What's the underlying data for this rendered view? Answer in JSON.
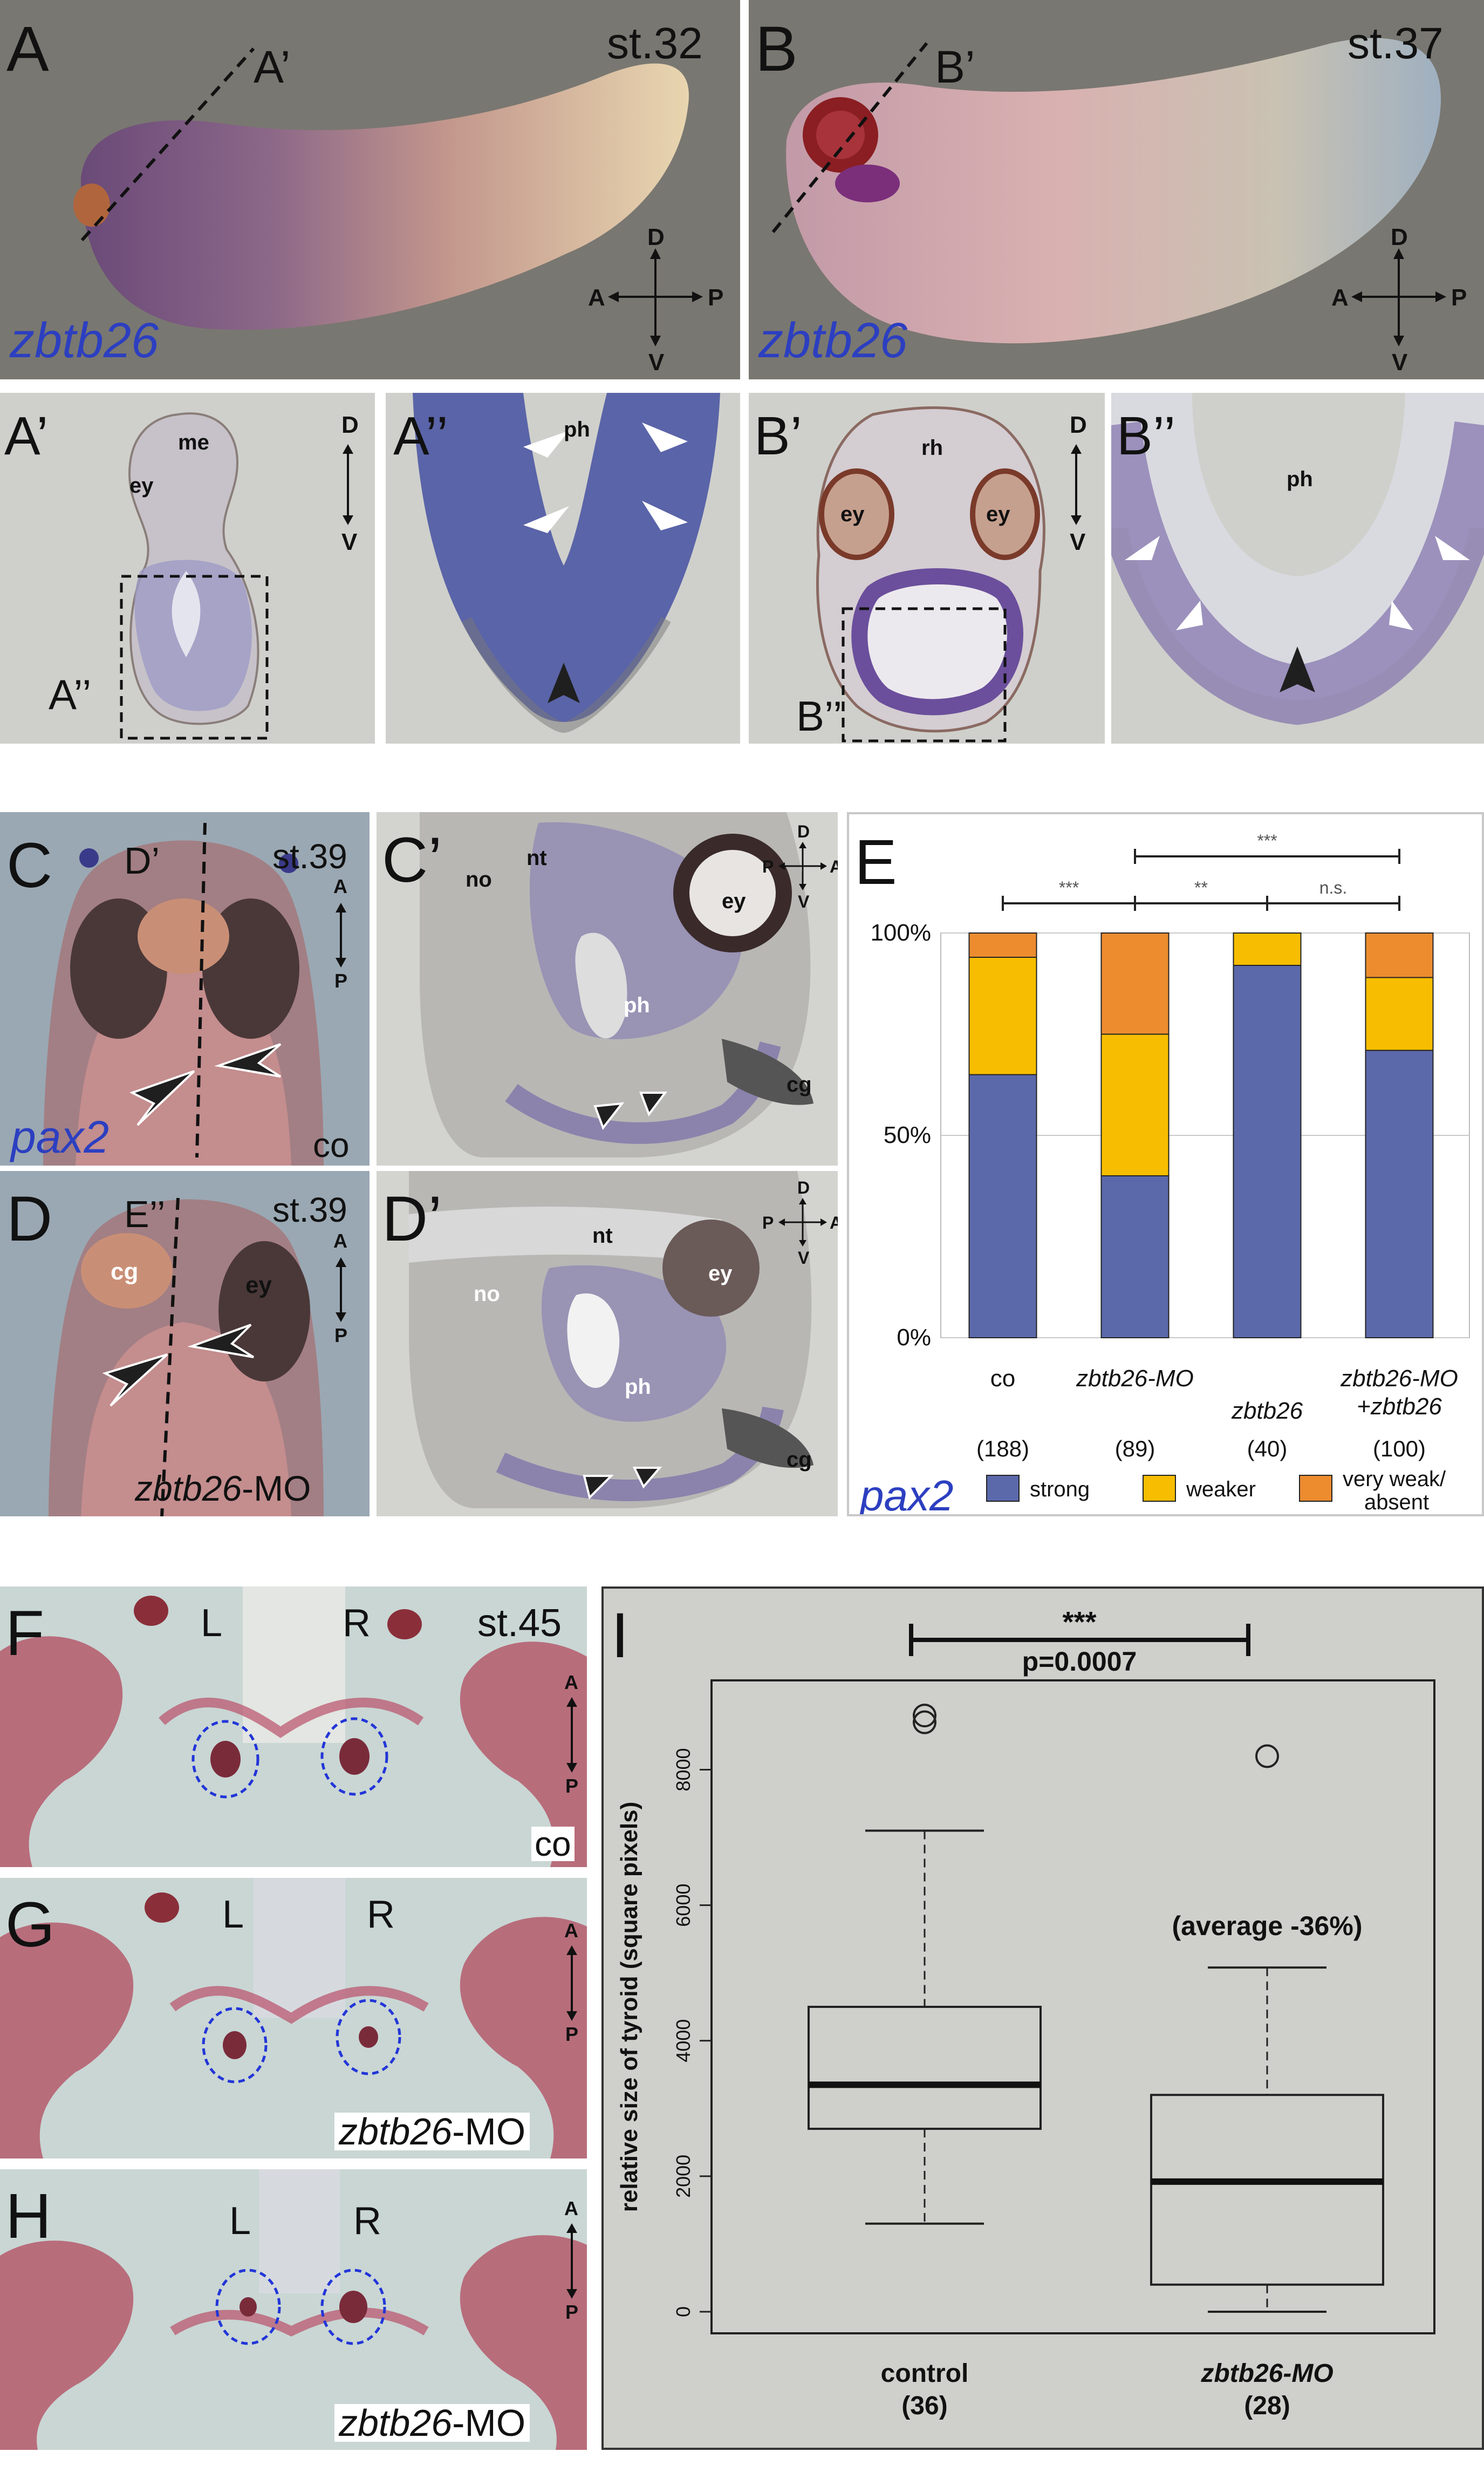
{
  "panel_A": {
    "letter": "A",
    "sub": "A’",
    "stage": "st.32",
    "gene": "zbtb26",
    "axis": {
      "d": "D",
      "v": "V",
      "a": "A",
      "p": "P"
    }
  },
  "panel_B": {
    "letter": "B",
    "sub": "B’",
    "stage": "st.37",
    "gene": "zbtb26",
    "axis": {
      "d": "D",
      "v": "V",
      "a": "A",
      "p": "P"
    }
  },
  "panel_A1": {
    "letter": "A’",
    "me": "me",
    "ey": "ey",
    "box": "A’’",
    "d": "D",
    "v": "V"
  },
  "panel_A2": {
    "letter": "A’’",
    "ph": "ph"
  },
  "panel_B1": {
    "letter": "B’",
    "rh": "rh",
    "ey1": "ey",
    "ey2": "ey",
    "box": "B’’",
    "d": "D",
    "v": "V"
  },
  "panel_B2": {
    "letter": "B’’",
    "ph": "ph"
  },
  "panel_C": {
    "letter": "C",
    "sub": "D’",
    "stage": "st.39",
    "gene": "pax2",
    "cond": "co",
    "a": "A",
    "p": "P"
  },
  "panel_C1": {
    "letter": "C’",
    "no": "no",
    "nt": "nt",
    "ey": "ey",
    "ph": "ph",
    "cg": "cg",
    "d": "D",
    "v": "V",
    "p": "P",
    "a": "A"
  },
  "panel_D": {
    "letter": "D",
    "sub": "E’’",
    "stage": "st.39",
    "cg": "cg",
    "ey": "ey",
    "cond_gene": "zbtb26",
    "cond_suffix": "-MO",
    "a": "A",
    "p": "P"
  },
  "panel_D1": {
    "letter": "D’",
    "nt": "nt",
    "no": "no",
    "ey": "ey",
    "ph": "ph",
    "cg": "cg",
    "d": "D",
    "v": "V",
    "p": "P",
    "a": "A"
  },
  "panel_E": {
    "letter": "E"
  },
  "panel_F": {
    "letter": "F",
    "l": "L",
    "r": "R",
    "stage": "st.45",
    "cond": "co",
    "a": "A",
    "p": "P"
  },
  "panel_G": {
    "letter": "G",
    "l": "L",
    "r": "R",
    "cond_gene": "zbtb26",
    "cond_suffix": "-MO",
    "a": "A",
    "p": "P"
  },
  "panel_H": {
    "letter": "H",
    "l": "L",
    "r": "R",
    "cond_gene": "zbtb26",
    "cond_suffix": "-MO",
    "a": "A",
    "p": "P"
  },
  "panel_I": {
    "letter": "I"
  },
  "chart_data": [
    {
      "type": "bar",
      "stacked": true,
      "categories": [
        "co",
        "zbtb26-MO",
        "zbtb26",
        "zbtb26-MO +zbtb26"
      ],
      "category_lines": [
        [
          "co"
        ],
        [
          "zbtb26-MO"
        ],
        [
          "zbtb26"
        ],
        [
          "zbtb26-MO",
          "+zbtb26"
        ]
      ],
      "counts": [
        "(188)",
        "(89)",
        "(40)",
        "(100)"
      ],
      "series": [
        {
          "name": "strong",
          "color": "#5b69ab",
          "values": [
            65,
            40,
            92,
            71
          ]
        },
        {
          "name": "weaker",
          "color": "#f7bd00",
          "values": [
            29,
            35,
            8,
            18
          ]
        },
        {
          "name": "very weak/ absent",
          "color": "#ec8c2f",
          "values": [
            6,
            25,
            0,
            11
          ]
        }
      ],
      "legend_title": "pax2",
      "legend_placement": "bottom",
      "ylim": [
        0,
        100
      ],
      "yticks": [
        "0%",
        "50%",
        "100%"
      ],
      "grid": true,
      "significance": [
        {
          "from": 0,
          "to": 1,
          "label": "***"
        },
        {
          "from": 1,
          "to": 2,
          "label": "**"
        },
        {
          "from": 2,
          "to": 3,
          "label": "n.s."
        },
        {
          "from": 1,
          "to": 3,
          "label": "***"
        }
      ]
    },
    {
      "type": "box",
      "ylabel": "relative size of tyroid (square pixels)",
      "ylim": [
        0,
        9000
      ],
      "yticks": [
        "0",
        "2000",
        "4000",
        "6000",
        "8000"
      ],
      "groups": [
        {
          "name": "control",
          "n": "(36)",
          "min": 1300,
          "q1": 2700,
          "median": 3350,
          "q3": 4500,
          "max": 7100,
          "outliers": [
            8700,
            8800
          ]
        },
        {
          "name": "zbtb26-MO",
          "n": "(28)",
          "min": 0,
          "q1": 400,
          "median": 1920,
          "q3": 3200,
          "max": 5080,
          "outliers": [
            8200
          ]
        }
      ],
      "significance": {
        "stars": "***",
        "p": "p=0.0007"
      },
      "annotation": "(average -36%)"
    }
  ]
}
